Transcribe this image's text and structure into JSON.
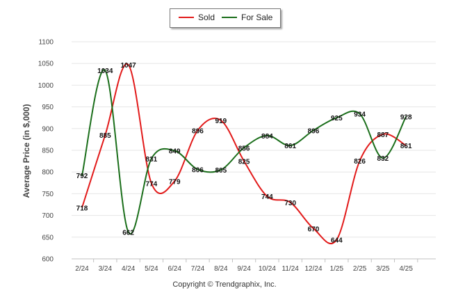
{
  "chart_data": {
    "type": "line",
    "ylabel": "Average Price (in $,000)",
    "ylim": [
      600,
      1100
    ],
    "yticks": [
      600,
      650,
      700,
      750,
      800,
      850,
      900,
      950,
      1000,
      1050,
      1100
    ],
    "categories": [
      "2/24",
      "3/24",
      "4/24",
      "5/24",
      "6/24",
      "7/24",
      "8/24",
      "9/24",
      "10/24",
      "11/24",
      "12/24",
      "1/25",
      "2/25",
      "3/25",
      "4/25"
    ],
    "grid": true,
    "legend_position": "top-center",
    "series": [
      {
        "name": "Sold",
        "color": "#e21a1a",
        "values": [
          718,
          885,
          1047,
          774,
          779,
          896,
          919,
          825,
          744,
          730,
          670,
          644,
          826,
          887,
          861
        ]
      },
      {
        "name": "For Sale",
        "color": "#1a6e1a",
        "values": [
          792,
          1034,
          662,
          831,
          849,
          806,
          805,
          856,
          884,
          861,
          896,
          925,
          934,
          832,
          928
        ]
      }
    ]
  },
  "footer": {
    "copyright": "Copyright © Trendgraphix, Inc."
  }
}
